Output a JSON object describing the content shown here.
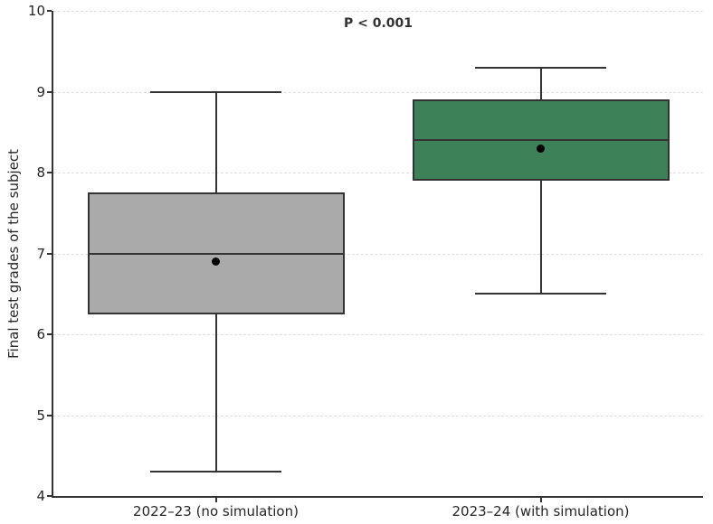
{
  "chart_data": {
    "type": "boxplot",
    "title": "",
    "xlabel": "",
    "ylabel": "Final test grades of the subject",
    "annotation": "P < 0.001",
    "ylim": [
      4,
      10
    ],
    "yticks": [
      4,
      5,
      6,
      7,
      8,
      9,
      10
    ],
    "grid": "horizontal dashed, major ticks only",
    "legend": "none",
    "categories": [
      "2022–23 (no simulation)",
      "2023–24 (with simulation)"
    ],
    "series": [
      {
        "name": "2022–23 (no simulation)",
        "whisker_low": 4.3,
        "q1": 6.25,
        "median": 7.0,
        "mean": 6.9,
        "q3": 7.75,
        "whisker_high": 9.0,
        "fill_color": "#aaaaaa"
      },
      {
        "name": "2023–24 (with simulation)",
        "whisker_low": 6.5,
        "q1": 7.9,
        "median": 8.4,
        "mean": 8.3,
        "q3": 8.9,
        "whisker_high": 9.3,
        "fill_color": "#3d8158"
      }
    ],
    "colors": {
      "box_edge": "#333333",
      "median": "#333333",
      "mean_marker": "#000000",
      "gridline": "#dedede",
      "axis_text": "#262626",
      "background": "#ffffff"
    }
  }
}
